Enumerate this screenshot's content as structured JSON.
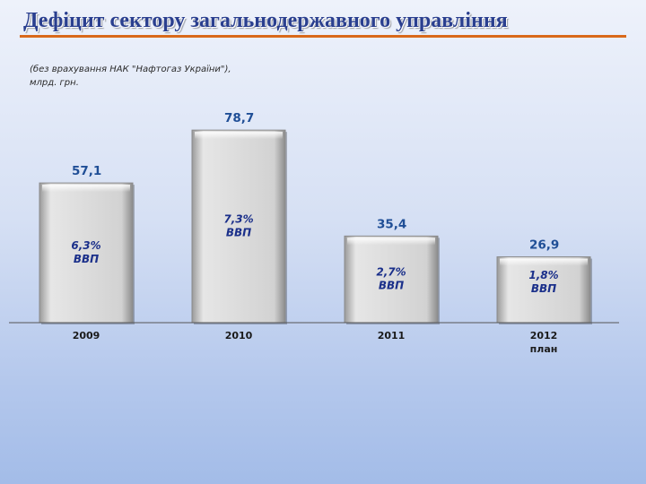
{
  "slide": {
    "title": "Дефіцит сектору загальнодержавного управління",
    "subtitle_line1": "(без врахування НАК \"Нафтогаз України\"),",
    "subtitle_line2": "млрд. грн."
  },
  "colors": {
    "title": "#2a3f8f",
    "rule": "#d9691a",
    "bar_fill": "#dcdcdc",
    "value_text": "#1f4e96",
    "gdp_text": "#1a2f8a"
  },
  "chart_data": {
    "type": "bar",
    "categories": [
      "2009",
      "2010",
      "2011",
      "2012"
    ],
    "category_sublabels": [
      "",
      "",
      "",
      "план"
    ],
    "values": [
      57.1,
      78.7,
      35.4,
      26.9
    ],
    "value_labels": [
      "57,1",
      "78,7",
      "35,4",
      "26,9"
    ],
    "gdp_share_labels": [
      "6,3%",
      "7,3%",
      "2,7%",
      "1,8%"
    ],
    "gdp_unit_label": "ВВП",
    "ylim": [
      0,
      80
    ],
    "grid": false,
    "legend": "none"
  }
}
